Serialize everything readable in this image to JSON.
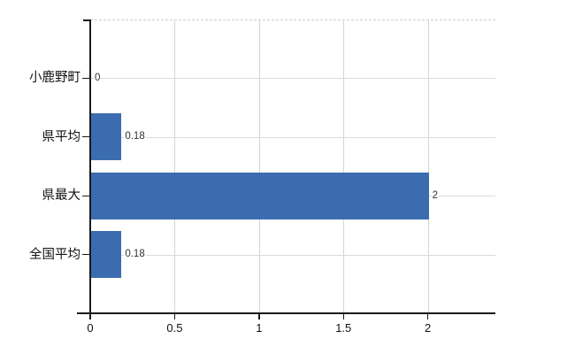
{
  "chart_data": {
    "type": "bar",
    "orientation": "horizontal",
    "title": "",
    "categories": [
      "小鹿野町",
      "県平均",
      "県最大",
      "全国平均"
    ],
    "values": [
      0,
      0.18,
      2,
      0.18
    ],
    "value_labels": [
      "0",
      "0.18",
      "2",
      "0.18"
    ],
    "x_tick_labels": [
      "0",
      "0.5",
      "1",
      "1.5",
      "2"
    ],
    "x_tick_values": [
      0,
      0.5,
      1,
      1.5,
      2
    ],
    "xlim": [
      0,
      2.4
    ],
    "grid": true,
    "legend": false,
    "colors": {
      "bar": "#3c6cb0",
      "axis": "#1a1a1a",
      "vertical_grid": "#d2d5d6",
      "horizontal_grid": "#d8dcd3",
      "top_border_dashed": "#c9cbc9",
      "value_label_text": "#333333",
      "label_text": "#111111",
      "background": "#ffffff"
    }
  }
}
